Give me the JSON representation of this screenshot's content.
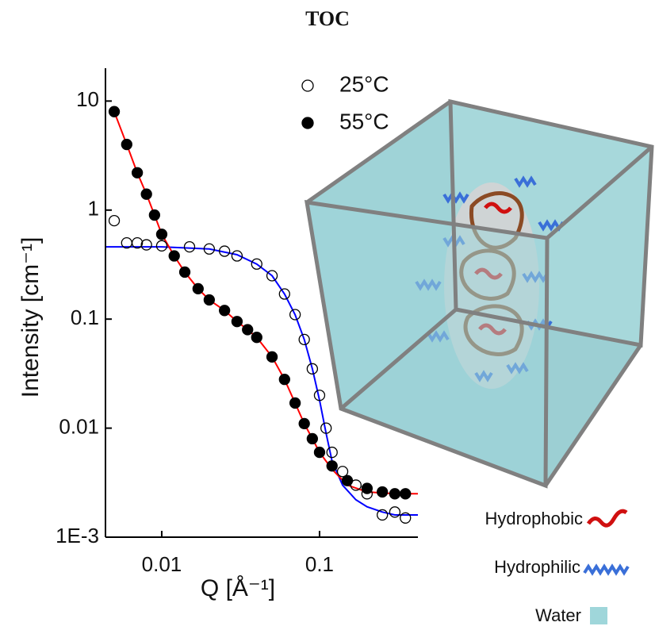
{
  "title": "TOC",
  "chart_data": {
    "type": "scatter",
    "y_label": "Intensity [cm⁻¹]",
    "x_label": "Q [Å⁻¹]",
    "xscale": "log",
    "yscale": "log",
    "xlim": [
      0.0044,
      0.42
    ],
    "ylim": [
      0.001,
      20
    ],
    "xticks": [
      0.01,
      0.1
    ],
    "yticks": [
      {
        "value": 0.001,
        "label": "1E-3"
      },
      0.01,
      0.1,
      1,
      10
    ],
    "legend": "top-right",
    "series": [
      {
        "name": "25°C",
        "marker": "open",
        "color": "#000000",
        "x": [
          0.005,
          0.006,
          0.007,
          0.008,
          0.01,
          0.015,
          0.02,
          0.025,
          0.03,
          0.04,
          0.05,
          0.06,
          0.07,
          0.08,
          0.09,
          0.1,
          0.11,
          0.12,
          0.14,
          0.17,
          0.2,
          0.25,
          0.3,
          0.35
        ],
        "values": [
          0.8,
          0.5,
          0.5,
          0.48,
          0.47,
          0.46,
          0.44,
          0.42,
          0.38,
          0.32,
          0.25,
          0.17,
          0.11,
          0.065,
          0.035,
          0.02,
          0.01,
          0.006,
          0.004,
          0.003,
          0.0025,
          0.0016,
          0.0017,
          0.0015
        ]
      },
      {
        "name": "55°C",
        "marker": "filled",
        "color": "#000000",
        "x": [
          0.005,
          0.006,
          0.007,
          0.008,
          0.009,
          0.01,
          0.012,
          0.014,
          0.017,
          0.02,
          0.025,
          0.03,
          0.035,
          0.04,
          0.05,
          0.06,
          0.07,
          0.08,
          0.09,
          0.1,
          0.12,
          0.15,
          0.2,
          0.25,
          0.3,
          0.35
        ],
        "values": [
          8,
          4,
          2.2,
          1.4,
          0.9,
          0.6,
          0.38,
          0.27,
          0.19,
          0.15,
          0.12,
          0.095,
          0.08,
          0.068,
          0.045,
          0.028,
          0.017,
          0.011,
          0.008,
          0.006,
          0.0045,
          0.0033,
          0.0028,
          0.0026,
          0.0025,
          0.0025
        ]
      }
    ],
    "fits": [
      {
        "color": "#0000ff",
        "x": [
          0.0044,
          0.01,
          0.02,
          0.03,
          0.04,
          0.05,
          0.06,
          0.07,
          0.08,
          0.09,
          0.1,
          0.11,
          0.12,
          0.14,
          0.17,
          0.2,
          0.25,
          0.3,
          0.42
        ],
        "values": [
          0.46,
          0.46,
          0.44,
          0.39,
          0.32,
          0.25,
          0.17,
          0.11,
          0.065,
          0.035,
          0.018,
          0.009,
          0.005,
          0.003,
          0.0022,
          0.0019,
          0.0017,
          0.0016,
          0.0016
        ]
      },
      {
        "color": "#ff0000",
        "x": [
          0.005,
          0.006,
          0.007,
          0.008,
          0.009,
          0.01,
          0.012,
          0.014,
          0.017,
          0.02,
          0.025,
          0.03,
          0.035,
          0.04,
          0.05,
          0.06,
          0.07,
          0.08,
          0.09,
          0.1,
          0.12,
          0.15,
          0.2,
          0.3,
          0.42
        ],
        "values": [
          8,
          4,
          2.2,
          1.4,
          0.9,
          0.6,
          0.38,
          0.27,
          0.19,
          0.15,
          0.12,
          0.095,
          0.08,
          0.068,
          0.045,
          0.028,
          0.017,
          0.011,
          0.008,
          0.006,
          0.0042,
          0.003,
          0.0026,
          0.0025,
          0.0025
        ]
      }
    ]
  },
  "schematic": {
    "labels": [
      "Hydrophobic",
      "Hydrophilic",
      "Water"
    ]
  }
}
